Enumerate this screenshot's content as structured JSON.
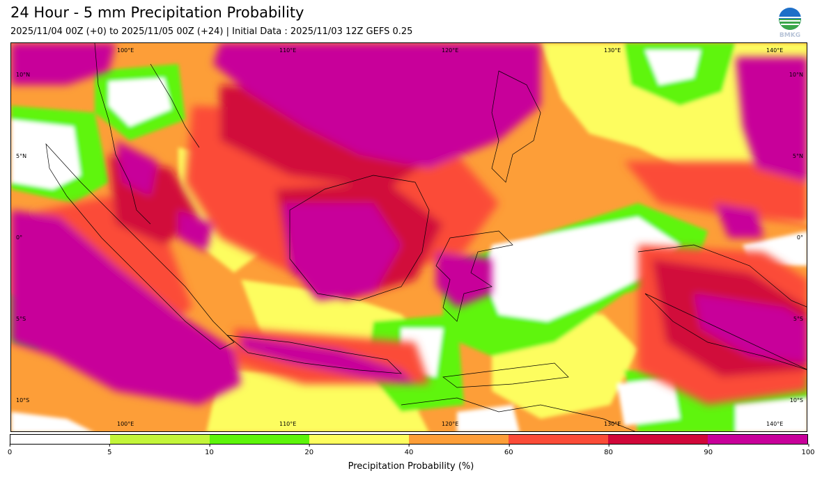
{
  "header": {
    "title": "24 Hour - 5 mm Precipitation Probability",
    "subtitle": "2025/11/04 00Z (+0) to 2025/11/05 00Z (+24) | Initial Data : 2025/11/03 12Z GEFS 0.25",
    "logo_text": "BMKG"
  },
  "map": {
    "lon_top": [
      "100°E",
      "110°E",
      "120°E",
      "130°E",
      "140°E"
    ],
    "lon_bottom": [
      "100°E",
      "110°E",
      "120°E",
      "130°E",
      "140°E"
    ],
    "lat_left": [
      "10°N",
      "5°N",
      "0°",
      "5°S",
      "10°S"
    ],
    "lat_right": [
      "10°N",
      "5°N",
      "0°",
      "5°S",
      "10°S"
    ]
  },
  "colorbar": {
    "ticks": [
      "0",
      "5",
      "10",
      "20",
      "40",
      "60",
      "80",
      "90",
      "100"
    ],
    "colors": [
      "#ffffff",
      "#c3f53a",
      "#5ef50a",
      "#fdfd5e",
      "#fd9e38",
      "#fb4c38",
      "#d1073a",
      "#c8009a"
    ],
    "label": "Precipitation Probability (%)"
  }
}
